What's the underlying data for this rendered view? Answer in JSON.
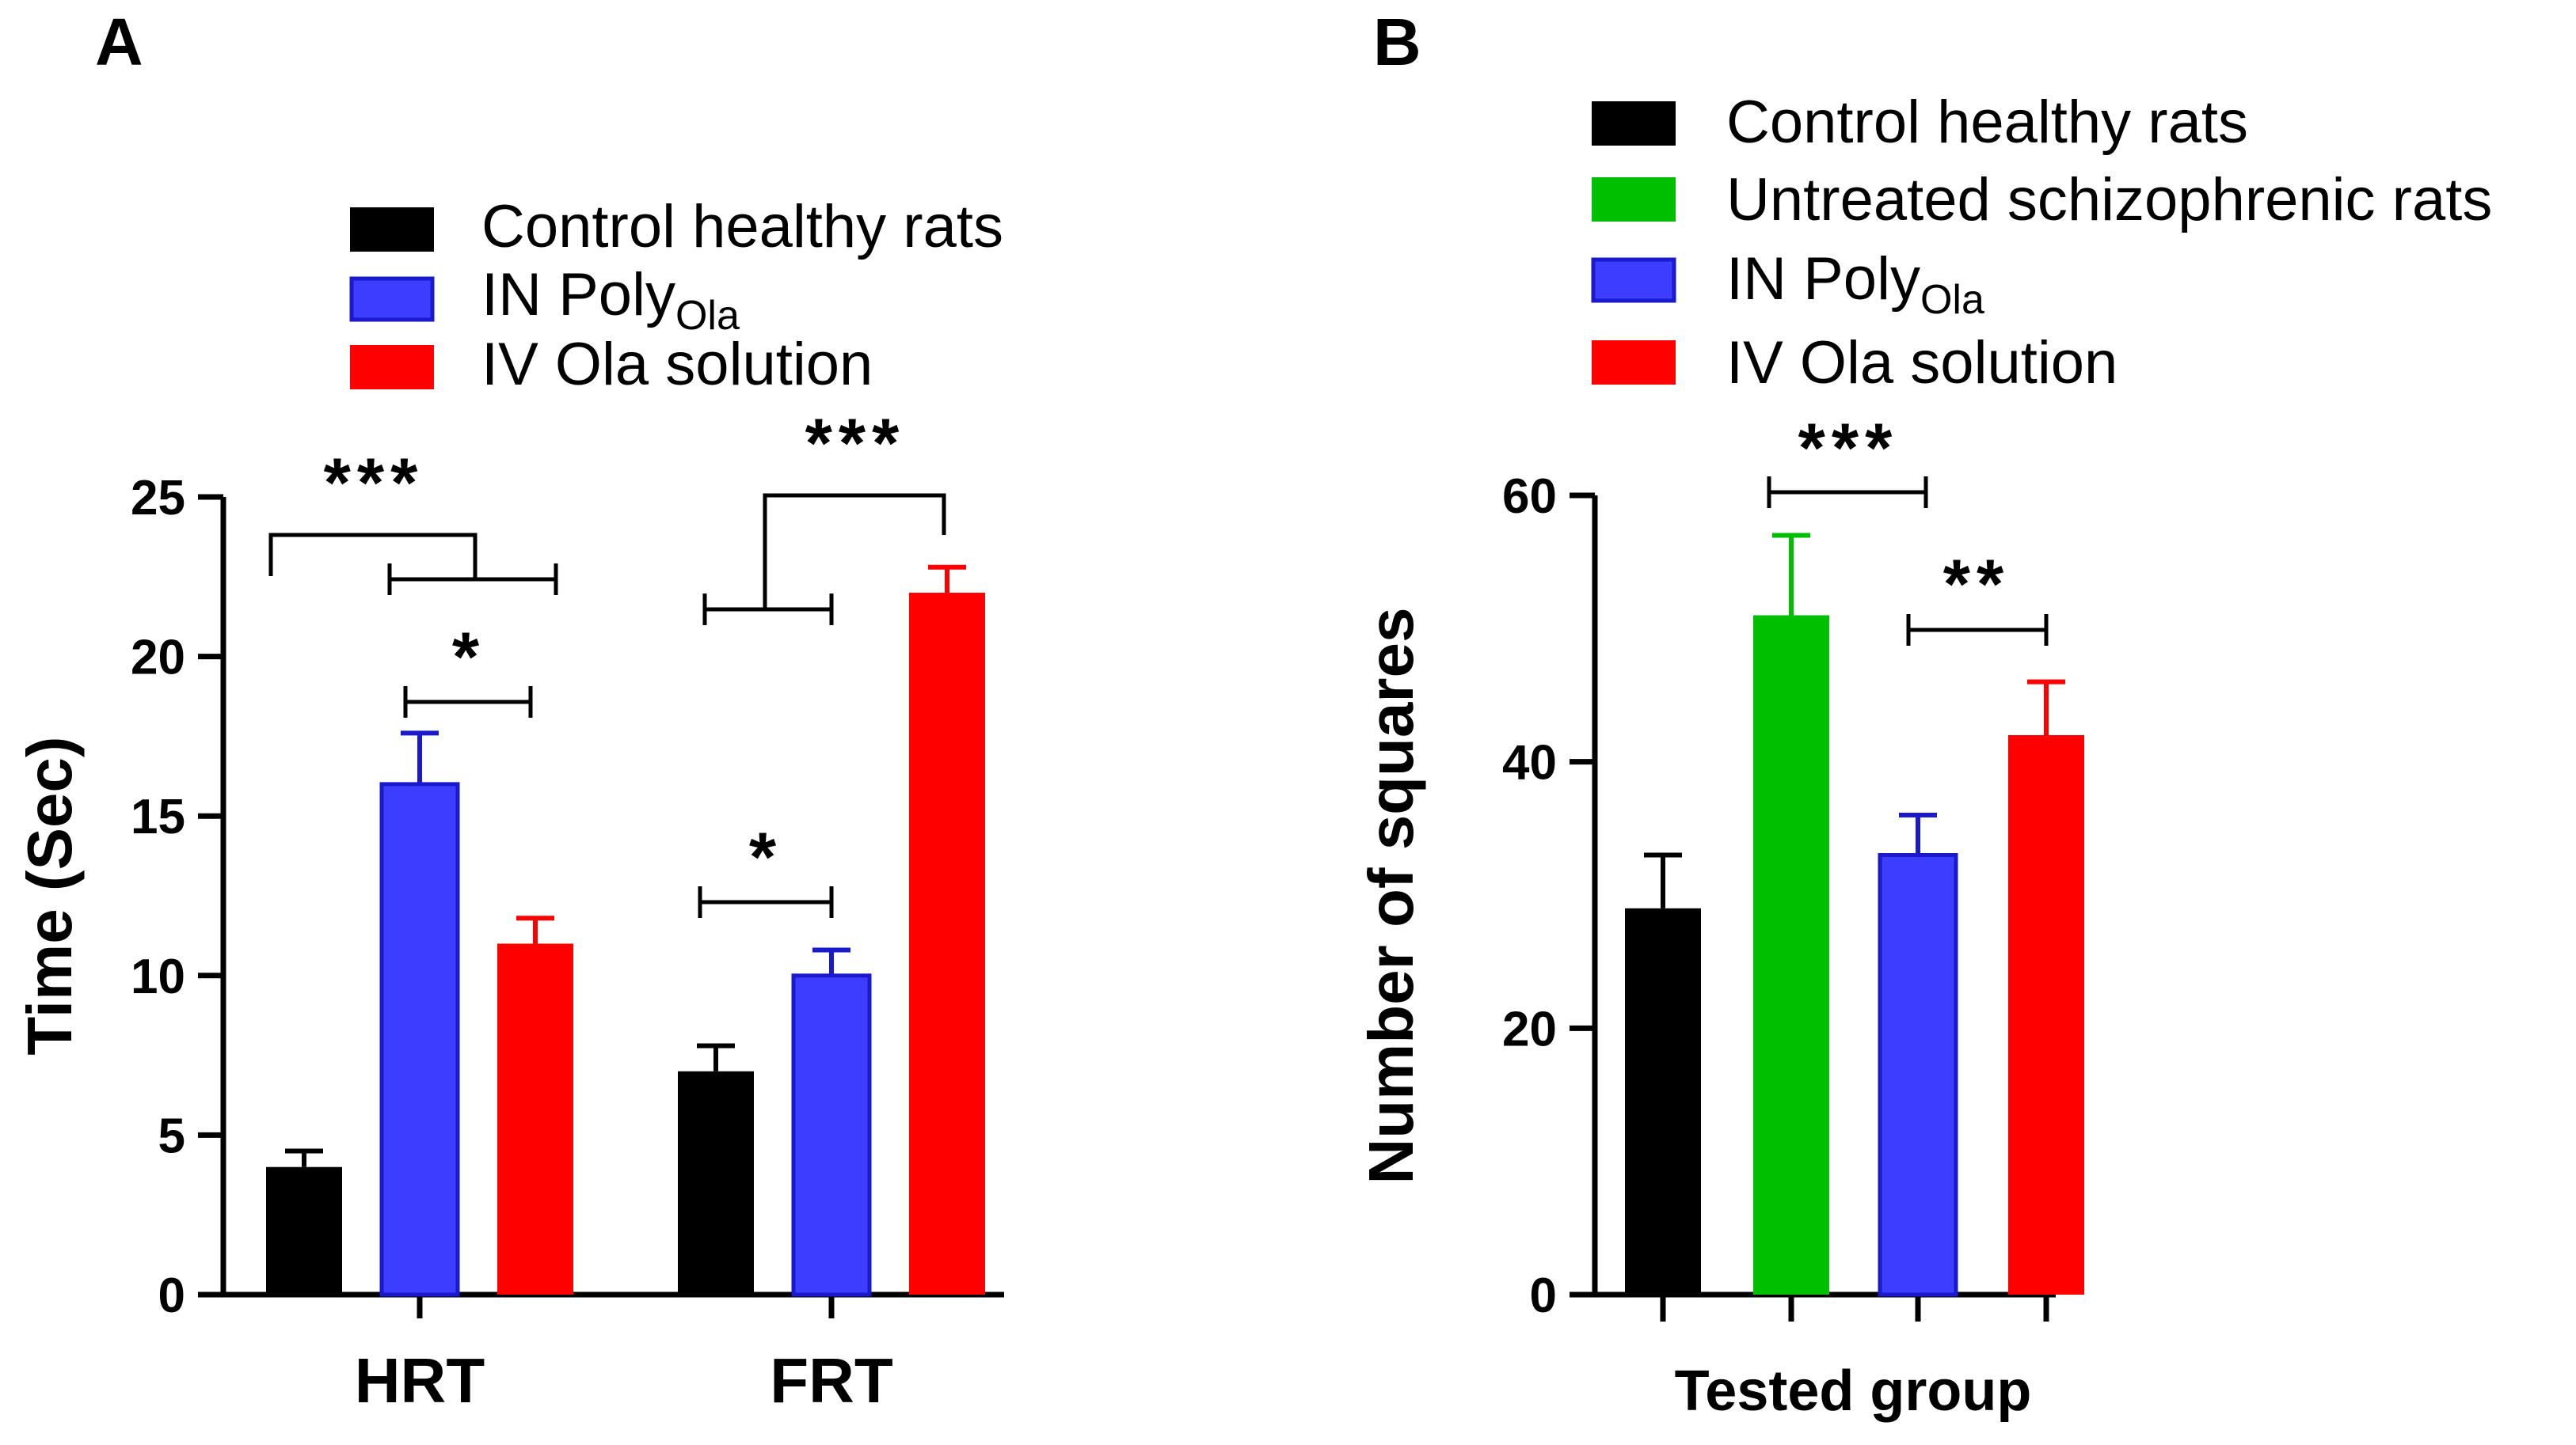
{
  "colors": {
    "control": "#000000",
    "untreated": "#00bf00",
    "in_poly": "#3d3dff",
    "in_poly_edge": "#1a1acc",
    "iv_ola": "#ff0000"
  },
  "chart_data": [
    {
      "panel": "A",
      "type": "bar",
      "title": "",
      "ylabel": "Time (Sec)",
      "xlabel": "",
      "ylim": [
        0,
        25
      ],
      "yticks": [
        "0",
        "5",
        "10",
        "15",
        "20",
        "25"
      ],
      "categories": [
        "HRT",
        "FRT"
      ],
      "legend": [
        {
          "label": "Control healthy rats",
          "sub": "",
          "color_key": "control"
        },
        {
          "label": "IN Poly",
          "sub": "Ola",
          "color_key": "in_poly"
        },
        {
          "label": "IV Ola solution",
          "sub": "",
          "color_key": "iv_ola"
        }
      ],
      "series": [
        {
          "name": "Control healthy rats",
          "color_key": "control",
          "values": [
            4,
            7
          ],
          "errors": [
            0.5,
            0.8
          ]
        },
        {
          "name": "IN PolyOla",
          "color_key": "in_poly",
          "values": [
            16,
            10
          ],
          "errors": [
            1.6,
            0.8
          ]
        },
        {
          "name": "IV Ola solution",
          "color_key": "iv_ola",
          "values": [
            11,
            22
          ],
          "errors": [
            0.8,
            0.8
          ]
        }
      ],
      "significance": [
        {
          "label": "***",
          "category": "HRT",
          "compare": "Control vs IN PolyOla & IV Ola solution"
        },
        {
          "label": "*",
          "category": "HRT",
          "compare": "IN PolyOla vs IV Ola solution"
        },
        {
          "label": "*",
          "category": "FRT",
          "compare": "Control vs IN PolyOla"
        },
        {
          "label": "***",
          "category": "FRT",
          "compare": "Control & IN PolyOla vs IV Ola solution"
        }
      ]
    },
    {
      "panel": "B",
      "type": "bar",
      "title": "",
      "ylabel": "Number of squares",
      "xlabel": "Tested group",
      "ylim": [
        0,
        60
      ],
      "yticks": [
        "0",
        "20",
        "40",
        "60"
      ],
      "categories": [
        "Control healthy rats",
        "Untreated schizophrenic rats",
        "IN PolyOla",
        "IV Ola solution"
      ],
      "legend": [
        {
          "label": "Control healthy rats",
          "sub": "",
          "color_key": "control"
        },
        {
          "label": "Untreated schizophrenic rats",
          "sub": "",
          "color_key": "untreated"
        },
        {
          "label": "IN Poly",
          "sub": "Ola",
          "color_key": "in_poly"
        },
        {
          "label": "IV Ola solution",
          "sub": "",
          "color_key": "iv_ola"
        }
      ],
      "values": [
        29,
        51,
        33,
        42
      ],
      "errors": [
        4,
        6,
        3,
        4
      ],
      "color_keys": [
        "control",
        "untreated",
        "in_poly",
        "iv_ola"
      ],
      "significance": [
        {
          "label": "***",
          "compare": "Untreated schizophrenic rats vs IN PolyOla"
        },
        {
          "label": "**",
          "compare": "IN PolyOla vs IV Ola solution"
        }
      ]
    }
  ]
}
